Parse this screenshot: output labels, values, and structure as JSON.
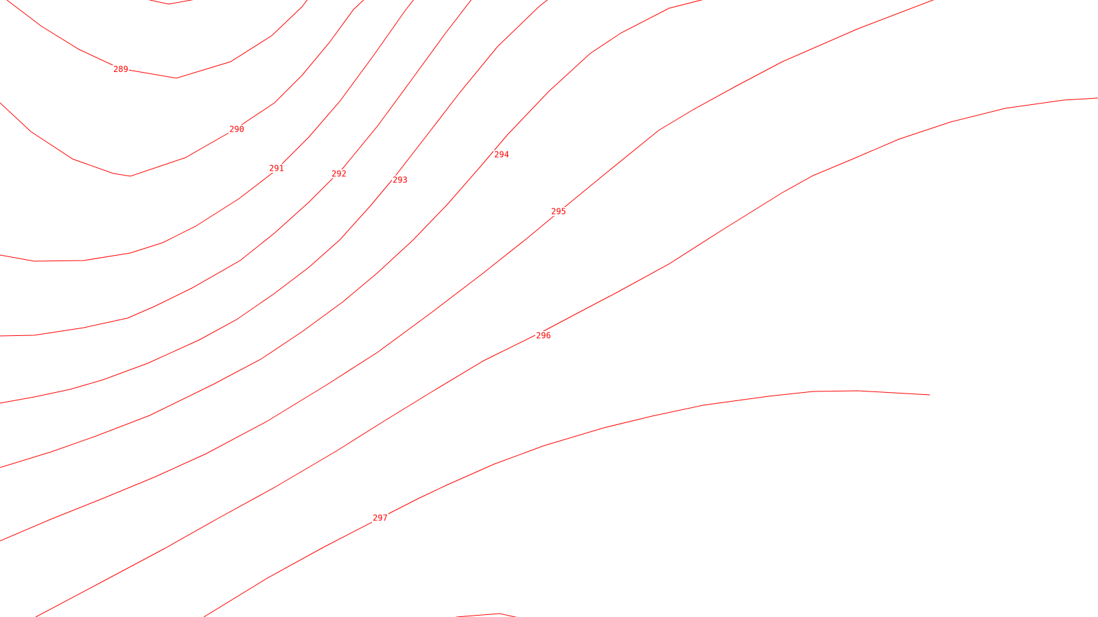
{
  "map": {
    "line_color": "#ff0000",
    "background_color": "#ffffff",
    "contours": [
      {
        "id": "c288",
        "label": ""
      },
      {
        "id": "c289",
        "label": "289"
      },
      {
        "id": "c290",
        "label": "290"
      },
      {
        "id": "c291a",
        "label": ""
      },
      {
        "id": "c291",
        "label": "291"
      },
      {
        "id": "c292",
        "label": "292"
      },
      {
        "id": "c293",
        "label": "293"
      },
      {
        "id": "c294",
        "label": "294"
      },
      {
        "id": "c295",
        "label": "295"
      },
      {
        "id": "c296",
        "label": "296"
      },
      {
        "id": "c297a",
        "label": ""
      },
      {
        "id": "c297",
        "label": "297"
      },
      {
        "id": "c298",
        "label": ""
      }
    ]
  }
}
